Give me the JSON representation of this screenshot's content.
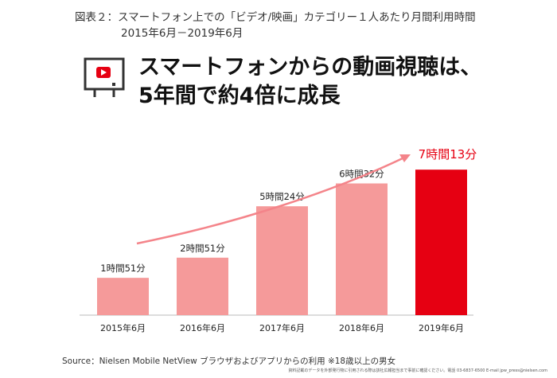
{
  "header": {
    "figure_title_line1": "図表２：スマートフォン上での「ビデオ/映画」カテゴリー１人あたり月間利用時間",
    "figure_title_line2": "2015年6月－2019年6月",
    "headline_line1": "スマートフォンからの動画視聴は、",
    "headline_line2": "5年間で約4倍に成長",
    "icon": "tv-play-icon"
  },
  "chart_data": {
    "type": "bar",
    "title": "スマートフォン上での「ビデオ/映画」カテゴリー１人あたり月間利用時間",
    "categories": [
      "2015年6月",
      "2016年6月",
      "2017年6月",
      "2018年6月",
      "2019年6月"
    ],
    "values_minutes": [
      111,
      171,
      324,
      392,
      433
    ],
    "data_labels": [
      "1時間51分",
      "2時間51分",
      "5時間24分",
      "6時間32分",
      "7時間13分"
    ],
    "xlabel": "",
    "ylabel": "",
    "ylim": [
      0,
      450
    ],
    "grid": false,
    "legend": "none",
    "colors": {
      "bar": "#f59a9a",
      "highlight": "#e60012",
      "trend": "#f4848a",
      "highlight_label": "#e60012"
    },
    "highlight_index": 4,
    "trend_arrow": true
  },
  "footer": {
    "source": "Source：Nielsen Mobile NetView ブラウザおよびアプリからの利用 ※18歳以上の男女",
    "note": "資料記載のデータを外部発行物に引用される際は該社広報担当まで事前に確認ください。電話 03-6837-6500 E-mail jpw_press@nielsen.com"
  }
}
